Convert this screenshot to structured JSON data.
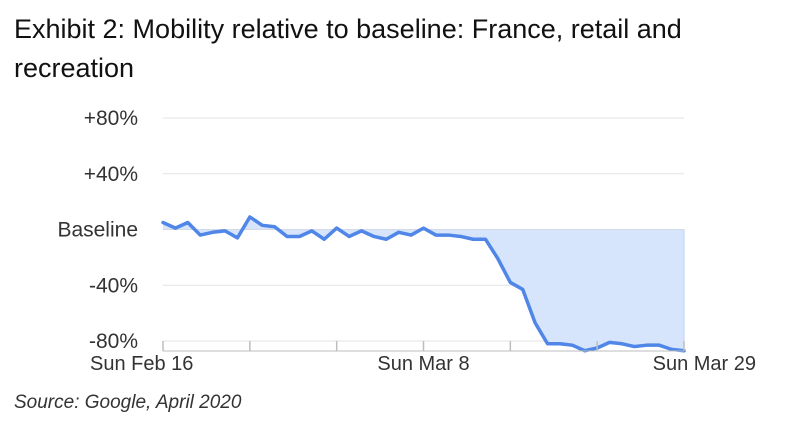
{
  "title": "Exhibit 2: Mobility relative to baseline: France, retail and recreation",
  "source": "Source: Google, April 2020",
  "chart_data": {
    "type": "area",
    "title": "Exhibit 2: Mobility relative to baseline: France, retail and recreation",
    "xlabel": "",
    "ylabel": "",
    "ylim": [
      -90,
      90
    ],
    "yticks": [
      80,
      40,
      0,
      -40,
      -80
    ],
    "ytick_labels": [
      "+80%",
      "+40%",
      "Baseline",
      "-40%",
      "-80%"
    ],
    "xtick_labels": [
      "Sun Feb 16",
      "Sun Mar 8",
      "Sun Mar 29"
    ],
    "xtick_positions": [
      0,
      21,
      42
    ],
    "grid": true,
    "legend": "none",
    "fill_below_baseline": true,
    "line_color": "#4f86e8",
    "fill_color": "#d6e5fb",
    "series": [
      {
        "values": [
          5,
          1,
          5,
          -4,
          -2,
          -1,
          -6,
          9,
          3,
          2,
          -5,
          -5,
          -1,
          -7,
          1,
          -5,
          -1,
          -5,
          -7,
          -2,
          -4,
          1,
          -4,
          -4,
          -5,
          -7,
          -7,
          -21,
          -38,
          -43,
          -67,
          -82,
          -82,
          -83,
          -87,
          -85,
          -81,
          -82,
          -84,
          -83,
          -83,
          -86,
          -87
        ]
      }
    ]
  }
}
